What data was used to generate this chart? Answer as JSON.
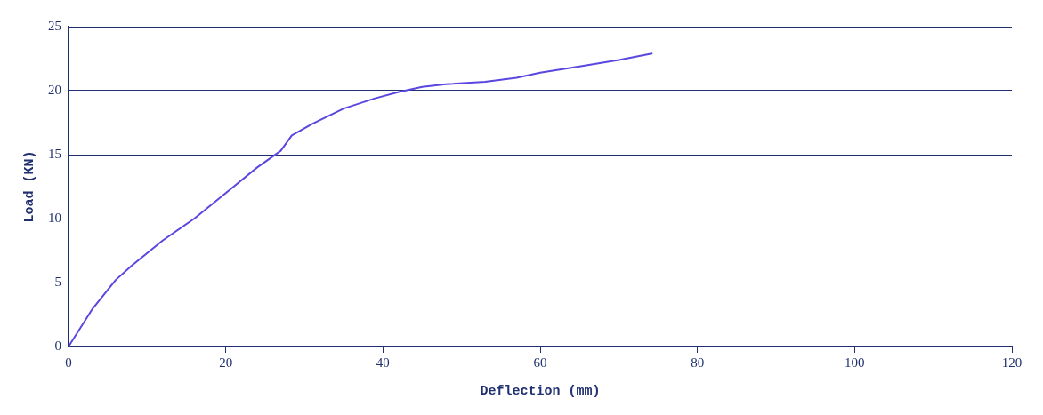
{
  "chart_data": {
    "type": "line",
    "xlabel": "Deflection (mm)",
    "ylabel": "Load (KN)",
    "series": [
      {
        "color": "#5a46e0",
        "x": [
          0,
          3,
          6,
          8,
          12,
          16,
          20,
          24,
          27,
          28.4,
          31,
          35,
          39,
          42,
          45,
          48,
          53,
          57,
          60,
          65,
          70,
          74.2
        ],
        "values": [
          0,
          2.9,
          5.2,
          6.3,
          8.3,
          10,
          12,
          14,
          15.3,
          16.5,
          17.4,
          18.6,
          19.4,
          19.9,
          20.3,
          20.5,
          20.7,
          21.0,
          21.4,
          21.9,
          22.4,
          22.9
        ]
      }
    ],
    "xlim": [
      0,
      120
    ],
    "xticks": [
      0,
      20,
      40,
      60,
      80,
      100,
      120
    ],
    "ylim": [
      0,
      25
    ],
    "yticks": [
      0,
      5,
      10,
      15,
      20,
      25
    ],
    "grid": "y",
    "legend": false,
    "marker": "none",
    "line_style": "solid"
  }
}
